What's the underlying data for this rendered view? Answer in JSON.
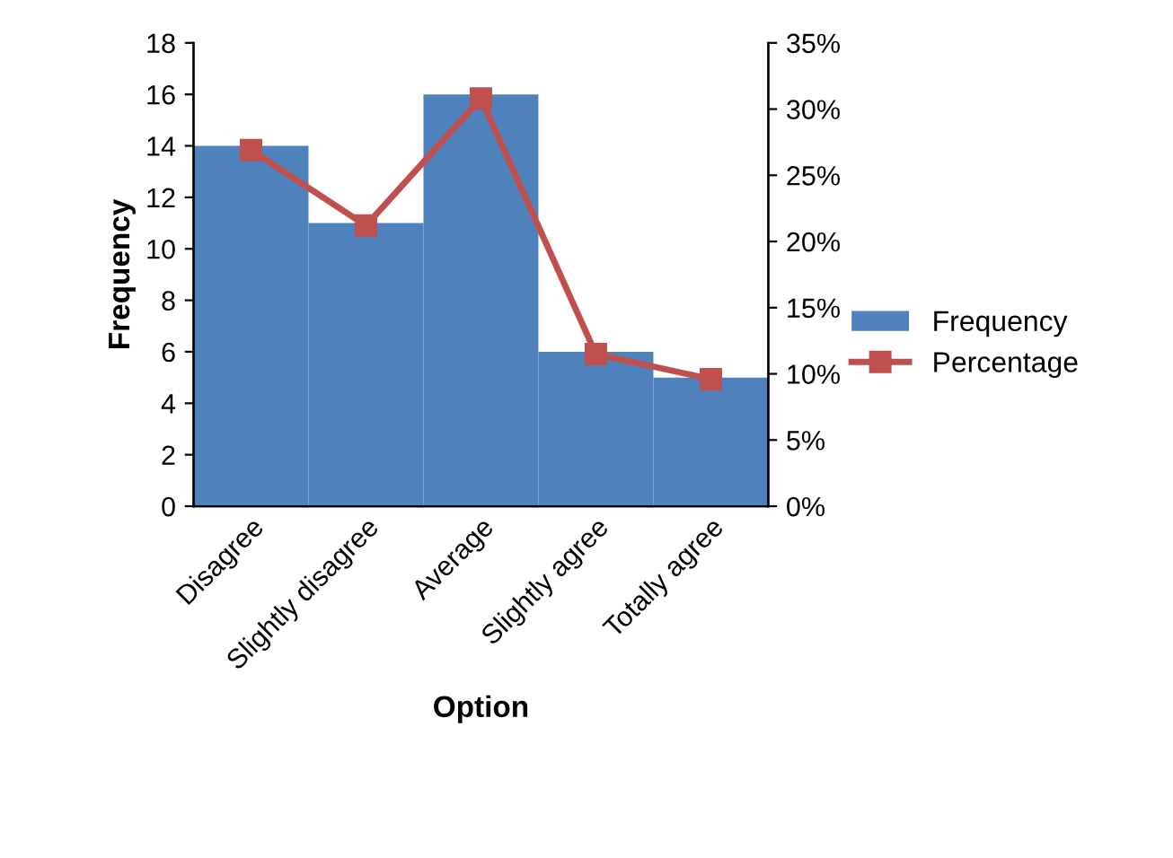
{
  "chart_data": {
    "type": "bar",
    "xlabel": "Option",
    "ylabel": "Frequency",
    "categories": [
      "Disagree",
      "Slightly disagree",
      "Average",
      "Slightly agree",
      "Totally agree"
    ],
    "series": [
      {
        "name": "Frequency",
        "color": "#4f81bd",
        "values": [
          14,
          11,
          16,
          6,
          5
        ]
      },
      {
        "name": "Percentage",
        "type": "line",
        "axis": "y2",
        "color": "#c0504d",
        "marker": "square",
        "values": [
          26.9,
          21.2,
          30.8,
          11.5,
          9.6
        ]
      }
    ],
    "ylim": [
      0,
      18
    ],
    "yticks": [
      0,
      2,
      4,
      6,
      8,
      10,
      12,
      14,
      16,
      18
    ],
    "y2lim": [
      0,
      35
    ],
    "y2ticks": [
      {
        "value": 0,
        "label": "0%"
      },
      {
        "value": 5,
        "label": "5%"
      },
      {
        "value": 10,
        "label": "10%"
      },
      {
        "value": 15,
        "label": "15%"
      },
      {
        "value": 20,
        "label": "20%"
      },
      {
        "value": 25,
        "label": "25%"
      },
      {
        "value": 30,
        "label": "30%"
      },
      {
        "value": 35,
        "label": "35%"
      }
    ],
    "grid": false,
    "legend": "right"
  }
}
